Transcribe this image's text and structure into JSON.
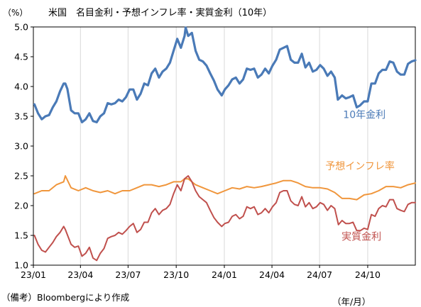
{
  "title": "米国　名目金利・予想インフレ率・実質金利（10年）",
  "unit": "（%）",
  "source": "（備考）Bloombergにより作成",
  "xunit": "（年/月）",
  "chart_data": {
    "type": "line",
    "title": "米国　名目金利・予想インフレ率・実質金利（10年）",
    "ylabel": "（%）",
    "xlabel": "（年/月）",
    "ylim": [
      1.0,
      5.0
    ],
    "yticks": [
      "1.0",
      "1.5",
      "2.0",
      "2.5",
      "3.0",
      "3.5",
      "4.0",
      "4.5",
      "5.0"
    ],
    "xlim": [
      "2023-01-01",
      "2024-12-31"
    ],
    "xticks": [
      {
        "date": "2023-01-01",
        "label": "23/01"
      },
      {
        "date": "2023-04-01",
        "label": "23/04"
      },
      {
        "date": "2023-07-01",
        "label": "23/07"
      },
      {
        "date": "2023-10-01",
        "label": "23/10"
      },
      {
        "date": "2024-01-01",
        "label": "24/01"
      },
      {
        "date": "2024-04-01",
        "label": "24/04"
      },
      {
        "date": "2024-07-01",
        "label": "24/07"
      },
      {
        "date": "2024-10-01",
        "label": "24/10"
      }
    ],
    "grid": "vertical",
    "series": [
      {
        "name": "10年金利",
        "color": "#4a7ab7",
        "x": [
          "2023-01-03",
          "2023-01-10",
          "2023-01-17",
          "2023-01-24",
          "2023-01-31",
          "2023-02-07",
          "2023-02-14",
          "2023-02-21",
          "2023-02-28",
          "2023-03-03",
          "2023-03-07",
          "2023-03-14",
          "2023-03-21",
          "2023-03-28",
          "2023-04-04",
          "2023-04-11",
          "2023-04-18",
          "2023-04-25",
          "2023-05-02",
          "2023-05-09",
          "2023-05-16",
          "2023-05-23",
          "2023-05-30",
          "2023-06-06",
          "2023-06-13",
          "2023-06-20",
          "2023-06-27",
          "2023-07-04",
          "2023-07-11",
          "2023-07-18",
          "2023-07-25",
          "2023-08-01",
          "2023-08-08",
          "2023-08-15",
          "2023-08-22",
          "2023-08-29",
          "2023-09-05",
          "2023-09-12",
          "2023-09-19",
          "2023-09-26",
          "2023-10-03",
          "2023-10-10",
          "2023-10-17",
          "2023-10-19",
          "2023-10-24",
          "2023-10-31",
          "2023-11-07",
          "2023-11-14",
          "2023-11-21",
          "2023-11-28",
          "2023-12-05",
          "2023-12-12",
          "2023-12-19",
          "2023-12-27",
          "2024-01-02",
          "2024-01-09",
          "2024-01-16",
          "2024-01-23",
          "2024-01-30",
          "2024-02-06",
          "2024-02-13",
          "2024-02-20",
          "2024-02-27",
          "2024-03-05",
          "2024-03-12",
          "2024-03-19",
          "2024-03-26",
          "2024-04-02",
          "2024-04-09",
          "2024-04-16",
          "2024-04-23",
          "2024-04-30",
          "2024-05-07",
          "2024-05-14",
          "2024-05-21",
          "2024-05-28",
          "2024-06-04",
          "2024-06-11",
          "2024-06-18",
          "2024-06-25",
          "2024-07-02",
          "2024-07-09",
          "2024-07-16",
          "2024-07-23",
          "2024-07-30",
          "2024-08-05",
          "2024-08-13",
          "2024-08-20",
          "2024-08-27",
          "2024-09-03",
          "2024-09-10",
          "2024-09-16",
          "2024-09-24",
          "2024-10-01",
          "2024-10-08",
          "2024-10-15",
          "2024-10-22",
          "2024-10-29",
          "2024-11-05",
          "2024-11-12",
          "2024-11-19",
          "2024-11-26",
          "2024-12-03",
          "2024-12-10",
          "2024-12-17",
          "2024-12-24",
          "2024-12-31"
        ],
        "values": [
          3.7,
          3.55,
          3.45,
          3.5,
          3.52,
          3.65,
          3.75,
          3.92,
          4.05,
          4.05,
          3.96,
          3.6,
          3.55,
          3.55,
          3.4,
          3.45,
          3.55,
          3.42,
          3.4,
          3.5,
          3.55,
          3.72,
          3.7,
          3.72,
          3.78,
          3.75,
          3.82,
          3.95,
          3.95,
          3.78,
          3.88,
          4.05,
          4.02,
          4.22,
          4.3,
          4.15,
          4.25,
          4.3,
          4.4,
          4.6,
          4.8,
          4.65,
          4.85,
          4.99,
          4.85,
          4.9,
          4.6,
          4.45,
          4.42,
          4.35,
          4.22,
          4.1,
          3.95,
          3.85,
          3.95,
          4.02,
          4.12,
          4.15,
          4.05,
          4.12,
          4.3,
          4.28,
          4.3,
          4.15,
          4.2,
          4.3,
          4.22,
          4.35,
          4.45,
          4.62,
          4.65,
          4.68,
          4.45,
          4.4,
          4.4,
          4.55,
          4.32,
          4.4,
          4.25,
          4.28,
          4.36,
          4.3,
          4.18,
          4.25,
          4.15,
          3.78,
          3.85,
          3.8,
          3.82,
          3.85,
          3.65,
          3.68,
          3.75,
          3.75,
          4.05,
          4.05,
          4.22,
          4.28,
          4.28,
          4.42,
          4.4,
          4.25,
          4.2,
          4.2,
          4.38,
          4.42,
          4.44
        ]
      },
      {
        "name": "予想インフレ率",
        "color": "#f0963c",
        "x": [
          "2023-01-03",
          "2023-01-17",
          "2023-01-31",
          "2023-02-14",
          "2023-02-28",
          "2023-03-03",
          "2023-03-14",
          "2023-03-28",
          "2023-04-11",
          "2023-04-25",
          "2023-05-09",
          "2023-05-23",
          "2023-06-06",
          "2023-06-20",
          "2023-07-04",
          "2023-07-18",
          "2023-08-01",
          "2023-08-15",
          "2023-08-29",
          "2023-09-12",
          "2023-09-26",
          "2023-10-10",
          "2023-10-17",
          "2023-10-24",
          "2023-11-07",
          "2023-11-21",
          "2023-12-05",
          "2023-12-19",
          "2024-01-02",
          "2024-01-16",
          "2024-01-30",
          "2024-02-13",
          "2024-02-27",
          "2024-03-12",
          "2024-03-26",
          "2024-04-09",
          "2024-04-23",
          "2024-05-07",
          "2024-05-21",
          "2024-06-04",
          "2024-06-18",
          "2024-07-02",
          "2024-07-16",
          "2024-07-30",
          "2024-08-13",
          "2024-08-27",
          "2024-09-10",
          "2024-09-24",
          "2024-10-08",
          "2024-10-22",
          "2024-11-05",
          "2024-11-19",
          "2024-12-03",
          "2024-12-17",
          "2024-12-31"
        ],
        "values": [
          2.2,
          2.25,
          2.25,
          2.35,
          2.4,
          2.5,
          2.3,
          2.25,
          2.3,
          2.25,
          2.22,
          2.25,
          2.2,
          2.25,
          2.25,
          2.3,
          2.35,
          2.35,
          2.32,
          2.35,
          2.4,
          2.4,
          2.45,
          2.45,
          2.35,
          2.3,
          2.25,
          2.2,
          2.25,
          2.3,
          2.28,
          2.32,
          2.3,
          2.32,
          2.35,
          2.38,
          2.42,
          2.42,
          2.38,
          2.32,
          2.3,
          2.3,
          2.28,
          2.22,
          2.12,
          2.12,
          2.1,
          2.18,
          2.2,
          2.25,
          2.32,
          2.32,
          2.3,
          2.35,
          2.38
        ]
      },
      {
        "name": "実質金利",
        "color": "#c0504d",
        "x": [
          "2023-01-03",
          "2023-01-10",
          "2023-01-17",
          "2023-01-24",
          "2023-01-31",
          "2023-02-07",
          "2023-02-14",
          "2023-02-21",
          "2023-02-28",
          "2023-03-03",
          "2023-03-14",
          "2023-03-21",
          "2023-03-28",
          "2023-04-04",
          "2023-04-11",
          "2023-04-18",
          "2023-04-25",
          "2023-05-02",
          "2023-05-09",
          "2023-05-16",
          "2023-05-23",
          "2023-05-30",
          "2023-06-06",
          "2023-06-13",
          "2023-06-20",
          "2023-06-27",
          "2023-07-04",
          "2023-07-11",
          "2023-07-18",
          "2023-07-25",
          "2023-08-01",
          "2023-08-08",
          "2023-08-15",
          "2023-08-22",
          "2023-08-29",
          "2023-09-05",
          "2023-09-12",
          "2023-09-19",
          "2023-09-26",
          "2023-10-03",
          "2023-10-10",
          "2023-10-17",
          "2023-10-24",
          "2023-10-31",
          "2023-11-07",
          "2023-11-14",
          "2023-11-21",
          "2023-11-28",
          "2023-12-05",
          "2023-12-12",
          "2023-12-19",
          "2023-12-27",
          "2024-01-02",
          "2024-01-09",
          "2024-01-16",
          "2024-01-23",
          "2024-01-30",
          "2024-02-06",
          "2024-02-13",
          "2024-02-20",
          "2024-02-27",
          "2024-03-05",
          "2024-03-12",
          "2024-03-19",
          "2024-03-26",
          "2024-04-02",
          "2024-04-09",
          "2024-04-16",
          "2024-04-23",
          "2024-04-30",
          "2024-05-07",
          "2024-05-14",
          "2024-05-21",
          "2024-05-28",
          "2024-06-04",
          "2024-06-11",
          "2024-06-18",
          "2024-06-25",
          "2024-07-02",
          "2024-07-09",
          "2024-07-16",
          "2024-07-23",
          "2024-07-30",
          "2024-08-06",
          "2024-08-13",
          "2024-08-20",
          "2024-08-27",
          "2024-09-03",
          "2024-09-10",
          "2024-09-17",
          "2024-09-24",
          "2024-10-01",
          "2024-10-08",
          "2024-10-15",
          "2024-10-22",
          "2024-10-29",
          "2024-11-05",
          "2024-11-12",
          "2024-11-19",
          "2024-11-26",
          "2024-12-03",
          "2024-12-10",
          "2024-12-17",
          "2024-12-24",
          "2024-12-31"
        ],
        "values": [
          1.5,
          1.35,
          1.25,
          1.22,
          1.3,
          1.38,
          1.48,
          1.55,
          1.65,
          1.6,
          1.35,
          1.3,
          1.32,
          1.15,
          1.2,
          1.3,
          1.12,
          1.08,
          1.2,
          1.28,
          1.45,
          1.48,
          1.5,
          1.55,
          1.52,
          1.58,
          1.65,
          1.7,
          1.55,
          1.6,
          1.72,
          1.72,
          1.88,
          1.95,
          1.85,
          1.92,
          1.95,
          2.02,
          2.2,
          2.35,
          2.25,
          2.45,
          2.5,
          2.4,
          2.25,
          2.15,
          2.1,
          2.05,
          1.92,
          1.8,
          1.72,
          1.65,
          1.7,
          1.72,
          1.82,
          1.85,
          1.78,
          1.82,
          1.98,
          1.95,
          1.98,
          1.85,
          1.88,
          1.95,
          1.88,
          1.98,
          2.05,
          2.22,
          2.25,
          2.25,
          2.08,
          2.02,
          2.0,
          2.15,
          1.98,
          2.05,
          1.95,
          1.98,
          2.05,
          2.02,
          1.92,
          2.0,
          1.95,
          1.68,
          1.75,
          1.7,
          1.7,
          1.72,
          1.58,
          1.58,
          1.62,
          1.6,
          1.85,
          1.82,
          1.95,
          2.0,
          1.98,
          2.1,
          2.1,
          1.95,
          1.92,
          1.9,
          2.02,
          2.05,
          2.05
        ]
      }
    ],
    "annotations": [
      {
        "text": "10年金利",
        "series": "10年金利"
      },
      {
        "text": "予想インフレ率",
        "series": "予想インフレ率"
      },
      {
        "text": "実質金利",
        "series": "実質金利"
      }
    ]
  }
}
